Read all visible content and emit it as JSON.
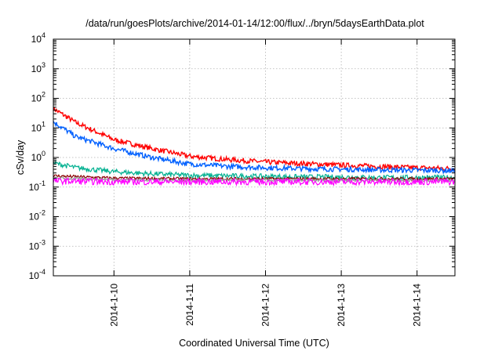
{
  "chart_data": {
    "type": "line",
    "title": "/data/run/goesPlots/archive/2014-01-14/12:00/flux/../bryn/5daysEarthData.plot",
    "xlabel": "Coordinated Universal Time (UTC)",
    "ylabel": "cSv/day",
    "y_scale": "log",
    "ylim_exponents": [
      -4,
      4
    ],
    "y_ticks": [
      {
        "base": "10",
        "exp": "-4"
      },
      {
        "base": "10",
        "exp": "-3"
      },
      {
        "base": "10",
        "exp": "-2"
      },
      {
        "base": "10",
        "exp": "-1"
      },
      {
        "base": "10",
        "exp": "0"
      },
      {
        "base": "10",
        "exp": "1"
      },
      {
        "base": "10",
        "exp": "2"
      },
      {
        "base": "10",
        "exp": "3"
      },
      {
        "base": "10",
        "exp": "4"
      }
    ],
    "xlim": [
      "2014-01-09 04:48",
      "2014-01-14 12:00"
    ],
    "x_ticks": [
      {
        "label": "2014-1-10",
        "date": "2014-01-10"
      },
      {
        "label": "2014-1-11",
        "date": "2014-01-11"
      },
      {
        "label": "2014-1-12",
        "date": "2014-01-12"
      },
      {
        "label": "2014-1-13",
        "date": "2014-01-13"
      },
      {
        "label": "2014-1-14",
        "date": "2014-01-14"
      }
    ],
    "grid": true,
    "legend": "none",
    "series": [
      {
        "color": "#ff0000",
        "x": [
          "2014-01-09 04:48",
          "2014-01-09 12:00",
          "2014-01-10 00:00",
          "2014-01-10 12:00",
          "2014-01-11 00:00",
          "2014-01-11 12:00",
          "2014-01-12 00:00",
          "2014-01-12 12:00",
          "2014-01-13 00:00",
          "2014-01-13 12:00",
          "2014-01-14 00:00",
          "2014-01-14 12:00"
        ],
        "y": [
          45,
          15,
          4,
          2,
          1.1,
          0.85,
          0.7,
          0.62,
          0.55,
          0.5,
          0.45,
          0.42
        ]
      },
      {
        "color": "#0060ff",
        "x": [
          "2014-01-09 04:48",
          "2014-01-09 12:00",
          "2014-01-10 00:00",
          "2014-01-10 12:00",
          "2014-01-11 00:00",
          "2014-01-11 12:00",
          "2014-01-12 00:00",
          "2014-01-12 12:00",
          "2014-01-13 00:00",
          "2014-01-13 12:00",
          "2014-01-14 00:00",
          "2014-01-14 12:00"
        ],
        "y": [
          16,
          5,
          2,
          1,
          0.6,
          0.5,
          0.45,
          0.42,
          0.4,
          0.38,
          0.37,
          0.36
        ]
      },
      {
        "color": "#00b090",
        "x": [
          "2014-01-09 04:48",
          "2014-01-09 12:00",
          "2014-01-10 00:00",
          "2014-01-10 12:00",
          "2014-01-11 00:00",
          "2014-01-11 12:00",
          "2014-01-12 00:00",
          "2014-01-12 12:00",
          "2014-01-13 00:00",
          "2014-01-13 12:00",
          "2014-01-14 00:00",
          "2014-01-14 12:00"
        ],
        "y": [
          0.65,
          0.45,
          0.33,
          0.28,
          0.25,
          0.24,
          0.23,
          0.22,
          0.22,
          0.21,
          0.21,
          0.21
        ]
      },
      {
        "color": "#8b0000",
        "x": [
          "2014-01-09 04:48",
          "2014-01-10 00:00",
          "2014-01-11 00:00",
          "2014-01-12 00:00",
          "2014-01-13 00:00",
          "2014-01-14 00:00",
          "2014-01-14 12:00"
        ],
        "y": [
          0.24,
          0.2,
          0.19,
          0.19,
          0.19,
          0.19,
          0.19
        ]
      },
      {
        "color": "#9a9a9a",
        "x": [
          "2014-01-09 04:48",
          "2014-01-10 00:00",
          "2014-01-11 00:00",
          "2014-01-12 00:00",
          "2014-01-13 00:00",
          "2014-01-14 00:00",
          "2014-01-14 12:00"
        ],
        "y": [
          0.2,
          0.18,
          0.17,
          0.17,
          0.17,
          0.17,
          0.17
        ]
      },
      {
        "color": "#ff00ff",
        "x": [
          "2014-01-09 04:48",
          "2014-01-10 00:00",
          "2014-01-11 00:00",
          "2014-01-12 00:00",
          "2014-01-13 00:00",
          "2014-01-14 00:00",
          "2014-01-14 12:00"
        ],
        "y": [
          0.16,
          0.15,
          0.15,
          0.15,
          0.15,
          0.15,
          0.15
        ]
      }
    ]
  }
}
